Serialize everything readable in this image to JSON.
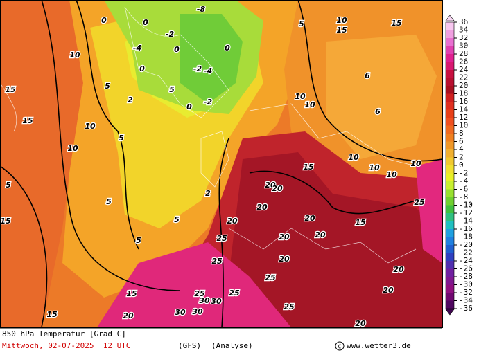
{
  "map": {
    "labels": [
      15,
      15,
      10,
      10,
      10,
      5,
      5,
      5,
      5,
      5,
      5,
      15,
      15,
      15,
      20,
      20,
      20,
      20,
      20,
      20,
      20,
      20,
      20,
      20,
      20,
      20,
      25,
      25,
      25,
      25,
      25,
      25,
      25,
      30,
      30,
      30,
      30,
      15,
      15,
      10,
      10,
      10,
      10,
      10,
      15,
      15,
      10,
      10,
      6,
      6,
      0,
      0,
      0,
      0,
      0,
      0,
      5,
      5,
      2,
      2,
      -2,
      -2,
      -4,
      -8,
      -2,
      -4
    ],
    "legend": {
      "values": [
        36,
        34,
        32,
        30,
        28,
        26,
        24,
        22,
        20,
        18,
        16,
        14,
        12,
        10,
        8,
        6,
        4,
        2,
        0,
        -2,
        -4,
        -6,
        -8,
        -10,
        -12,
        -14,
        -16,
        -18,
        -20,
        -22,
        -24,
        -26,
        -28,
        -30,
        -32,
        -34,
        -36
      ],
      "colors": [
        "#f8c8f0",
        "#f0a0e0",
        "#e870d0",
        "#e040b0",
        "#e02090",
        "#d81870",
        "#c81040",
        "#b81030",
        "#a81020",
        "#d02020",
        "#e03020",
        "#e84018",
        "#f05020",
        "#f06a20",
        "#f08020",
        "#f09828",
        "#f0b030",
        "#f0c830",
        "#f0e030",
        "#e8f028",
        "#c8f030",
        "#98e030",
        "#70d030",
        "#40c040",
        "#30c080",
        "#20c0c0",
        "#20a0e0",
        "#2080e0",
        "#2060d0",
        "#3040c0",
        "#5030b0",
        "#7020a0",
        "#801890",
        "#901080",
        "#700870",
        "#500860"
      ]
    }
  },
  "footer": {
    "title": "850 hPa Temperatur [Grad C]",
    "date": "Mittwoch, 02-07-2025  12 UTC",
    "model": "(GFS)",
    "mode": "(Analyse)",
    "credit": "www.wetter3.de"
  }
}
